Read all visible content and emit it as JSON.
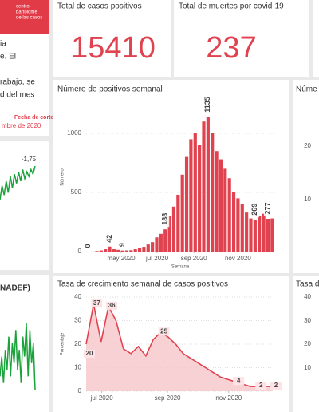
{
  "sidebar": {
    "logo": [
      "centro",
      "bartolomé",
      "de las casos"
    ],
    "lines": [
      "ia",
      "e. El",
      "rabajo, se",
      "d del mes"
    ],
    "cutoff_label": "Fecha de corte",
    "cutoff_date": "mbre de 2020",
    "indicator_label": "NADEF)"
  },
  "cards": [
    {
      "title": "Total de casos positivos",
      "value": 15410
    },
    {
      "title": "Total de muertes por covid-19",
      "value": 237
    }
  ],
  "chart_data": [
    {
      "type": "bar",
      "title": "Número de positivos semanal",
      "ylabel": "Número",
      "xlabel": "Semana",
      "color": "#e0434f",
      "categories": [
        null,
        null,
        null,
        null,
        null,
        null,
        null,
        null,
        null,
        null,
        null,
        null,
        null,
        null,
        null,
        null,
        null,
        null,
        null,
        null,
        null,
        null,
        null,
        null,
        null,
        null,
        null,
        null,
        null,
        null,
        null,
        null,
        null,
        null,
        null,
        null,
        null,
        null,
        null,
        null,
        null,
        null,
        null,
        null
      ],
      "values": [
        0,
        0,
        5,
        10,
        20,
        42,
        20,
        15,
        9,
        10,
        12,
        20,
        30,
        40,
        60,
        80,
        120,
        150,
        188,
        300,
        380,
        480,
        650,
        800,
        950,
        1000,
        900,
        1100,
        1135,
        1000,
        850,
        780,
        700,
        620,
        500,
        450,
        400,
        330,
        280,
        269,
        300,
        320,
        277,
        280
      ],
      "value_labels": [
        "0",
        null,
        null,
        null,
        null,
        "42",
        null,
        null,
        "9",
        null,
        null,
        null,
        null,
        null,
        null,
        null,
        null,
        null,
        "188",
        null,
        null,
        null,
        null,
        null,
        null,
        null,
        null,
        null,
        "1135",
        null,
        null,
        null,
        null,
        null,
        null,
        null,
        null,
        null,
        null,
        "269",
        null,
        null,
        "277",
        null
      ],
      "ylim": [
        0,
        1250
      ],
      "yticks": [
        0,
        500,
        1000
      ],
      "xticks": [
        {
          "value": 7.7,
          "label": "may 2020"
        },
        {
          "value": 16.1,
          "label": "jul 2020"
        },
        {
          "value": 24.7,
          "label": "sep 2020"
        },
        {
          "value": 35,
          "label": "nov 2020"
        }
      ]
    },
    {
      "type": "area",
      "title": "Tasa de crecimiento semanal de casos positivos",
      "ylabel": "Porcentaje",
      "color": "#e0434f",
      "categories": [
        null,
        null,
        null,
        null,
        null,
        null,
        null,
        null,
        null,
        null,
        null,
        null,
        null,
        null,
        null,
        null,
        null,
        null,
        null,
        null,
        null,
        null,
        null,
        null,
        null,
        null
      ],
      "values": [
        20,
        37,
        21,
        36,
        30,
        18,
        16,
        19,
        15,
        22,
        25,
        23,
        20,
        16,
        14,
        12,
        10,
        8,
        6,
        5,
        4,
        3,
        2,
        2,
        2,
        2
      ],
      "value_labels": [
        "20",
        "37",
        null,
        "36",
        null,
        null,
        null,
        null,
        null,
        null,
        "25",
        null,
        null,
        null,
        null,
        null,
        null,
        null,
        null,
        null,
        "4",
        null,
        null,
        "2",
        null,
        "2"
      ],
      "ylim": [
        0,
        40
      ],
      "yticks": [
        0,
        10,
        20,
        30,
        40
      ],
      "xticks": [
        {
          "value": 2.1,
          "label": "jul 2020"
        },
        {
          "value": 10.9,
          "label": "sep 2020"
        },
        {
          "value": 19.1,
          "label": "nov 2020"
        }
      ]
    },
    {
      "type": "sparkline",
      "color": "#1aa33a",
      "values": [
        -3.2,
        -2.6,
        -3.0,
        -2.4,
        -2.9,
        -2.2,
        -2.7,
        -2.1,
        -2.5,
        -2.0,
        -2.4,
        -1.9,
        -2.3,
        -2.0,
        -2.2,
        -1.9,
        -2.1,
        -1.75
      ],
      "value_labels": [
        null,
        null,
        null,
        null,
        null,
        null,
        null,
        null,
        null,
        null,
        null,
        null,
        null,
        null,
        null,
        null,
        null,
        "-1,75"
      ]
    },
    {
      "type": "sparkline",
      "color": "#1aa33a",
      "values": [
        0.2,
        0.5,
        0.1,
        0.6,
        0.3,
        0.8,
        0.2,
        0.7,
        0.4,
        0.9,
        0.3,
        0.6,
        0.1,
        0.8,
        0.5,
        1.0,
        0.2,
        0.9,
        0.4,
        0.7,
        0.0
      ]
    }
  ],
  "partial": {
    "top_title": "Núme",
    "top_ticks": [
      "20",
      "10"
    ],
    "bottom_title": "Tasa d",
    "bottom_ticks": [
      "40",
      "30",
      "20",
      "10"
    ]
  }
}
